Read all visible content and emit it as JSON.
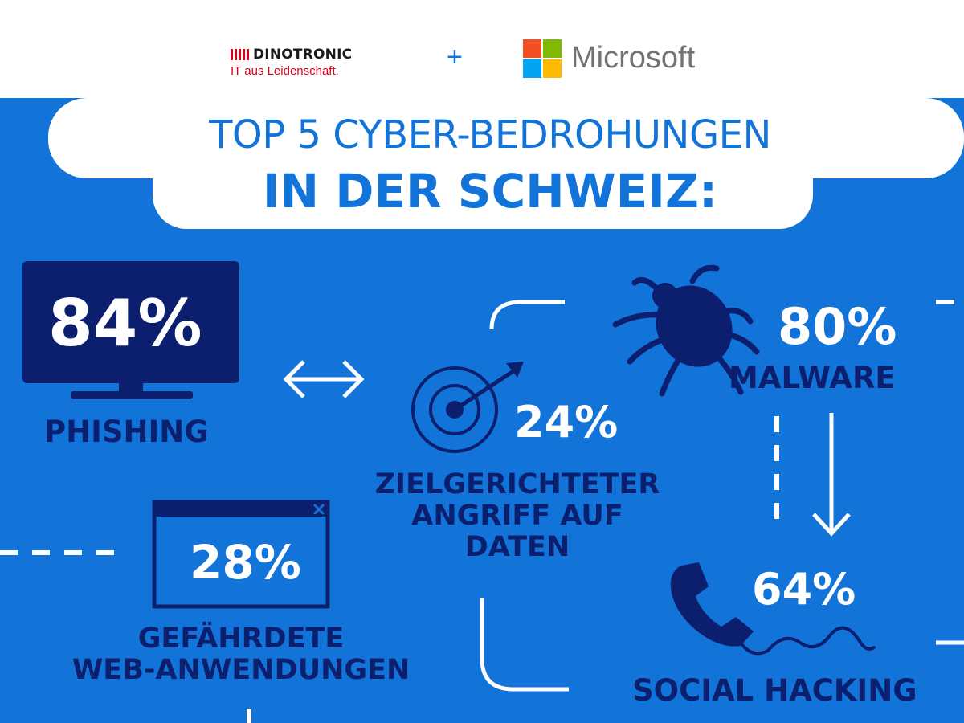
{
  "header": {
    "dinotronic": {
      "name": "DINOTRONIC",
      "tagline": "IT aus Leidenschaft."
    },
    "plus": "+",
    "microsoft": {
      "name": "Microsoft"
    }
  },
  "title": {
    "line1": "TOP 5 CYBER-BEDROHUNGEN",
    "line2": "IN DER SCHWEIZ:"
  },
  "stats": [
    {
      "value": "84%",
      "label": "PHISHING",
      "icon": "monitor-icon"
    },
    {
      "value": "80%",
      "label": "MALWARE",
      "icon": "bug-icon"
    },
    {
      "value": "24%",
      "label_lines": [
        "ZIELGERICHTETER",
        "ANGRIFF AUF",
        "DATEN"
      ],
      "icon": "target-icon"
    },
    {
      "value": "28%",
      "label_lines": [
        "GEFÄHRDETE",
        "WEB-ANWENDUNGEN"
      ],
      "icon": "browser-window-icon"
    },
    {
      "value": "64%",
      "label": "SOCIAL HACKING",
      "icon": "phone-icon"
    }
  ],
  "colors": {
    "background_blue": "#1273d8",
    "dark_navy": "#0b1f6e",
    "white": "#ffffff",
    "dinotronic_red": "#d9001b",
    "ms_red": "#f25022",
    "ms_green": "#7fba00",
    "ms_blue": "#00a4ef",
    "ms_yellow": "#ffb900"
  }
}
